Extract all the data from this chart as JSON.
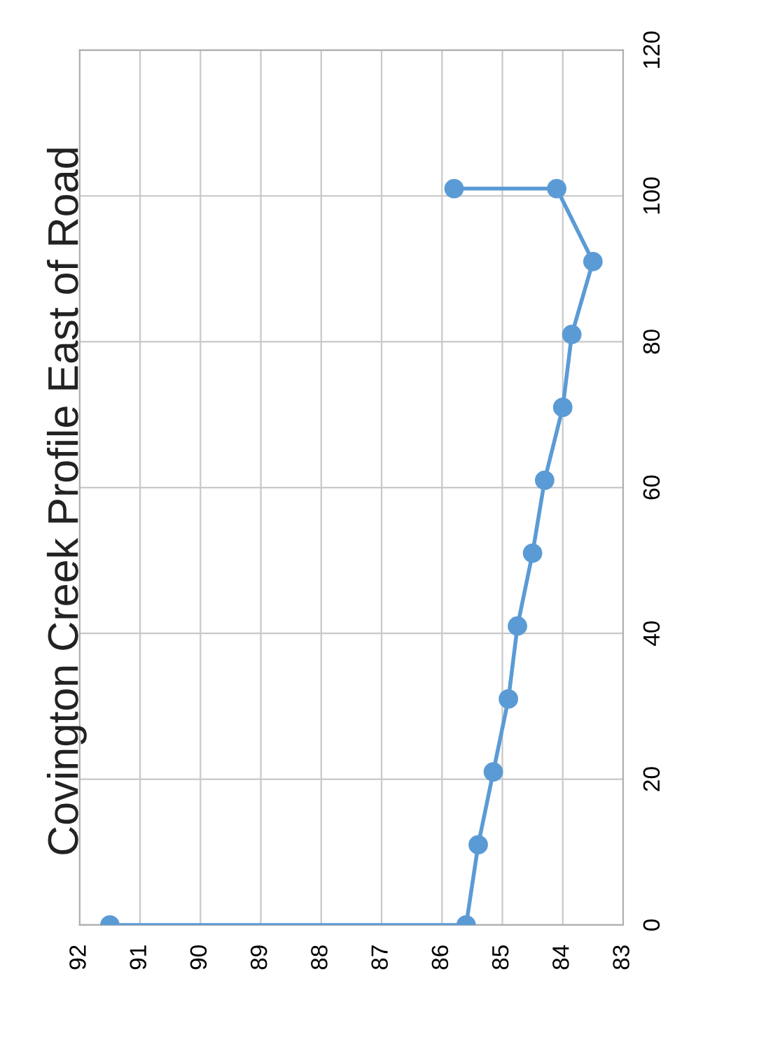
{
  "chart_data": {
    "type": "line",
    "title": "Covington Creek Profile East of Road",
    "x": [
      91.5,
      85.6,
      85.4,
      85.15,
      84.9,
      84.75,
      84.5,
      84.3,
      84.0,
      83.85,
      83.5,
      84.1,
      85.8
    ],
    "series": [
      {
        "color": "#5b9bd5",
        "values": [
          0,
          0,
          11,
          21,
          31,
          41,
          51,
          61,
          71,
          81,
          91,
          101,
          101
        ]
      }
    ],
    "xlim": [
      92,
      83
    ],
    "xticks": [
      92,
      91,
      90,
      89,
      88,
      87,
      86,
      85,
      84,
      83
    ],
    "ylim": [
      0,
      120
    ],
    "yticks": [
      0,
      20,
      40,
      60,
      80,
      100,
      120
    ],
    "grid": true,
    "marker": "circle",
    "line_style": "solid"
  }
}
